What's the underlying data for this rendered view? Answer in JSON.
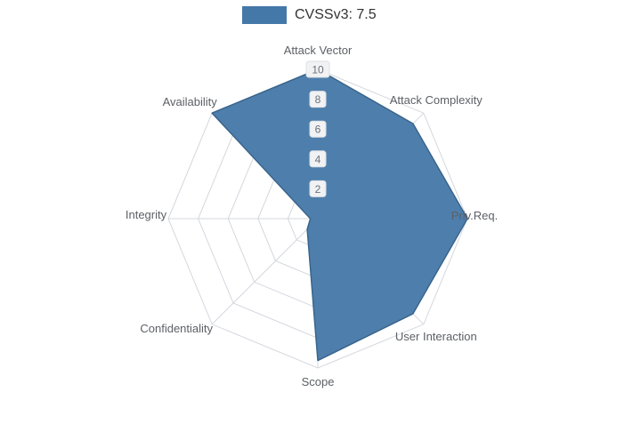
{
  "chart_data": {
    "type": "radar",
    "title": "CVSSv3: 7.5",
    "legend": {
      "label": "CVSSv3: 7.5",
      "position": "top-center"
    },
    "axes": [
      "Attack Vector",
      "Attack Complexity",
      "Priv.Req.",
      "User Interaction",
      "Scope",
      "Confidentiality",
      "Integrity",
      "Availability"
    ],
    "series": [
      {
        "name": "CVSSv3: 7.5",
        "values": [
          10,
          9,
          10,
          9,
          9.5,
          1,
          0.5,
          10
        ]
      }
    ],
    "rmax": 10,
    "ticks": [
      2,
      4,
      6,
      8,
      10
    ],
    "grid": "on",
    "colors": {
      "fill": "#4478a8",
      "fill_opacity": 0.95,
      "stroke": "#39648c",
      "grid": "#d4d7de",
      "axis_label": "#5c6066",
      "tick_label": "#6e7079",
      "tick_bg": "#f1f2f4",
      "tick_border": "#dcdfe3",
      "legend_text": "#333333",
      "background": "#ffffff"
    }
  }
}
